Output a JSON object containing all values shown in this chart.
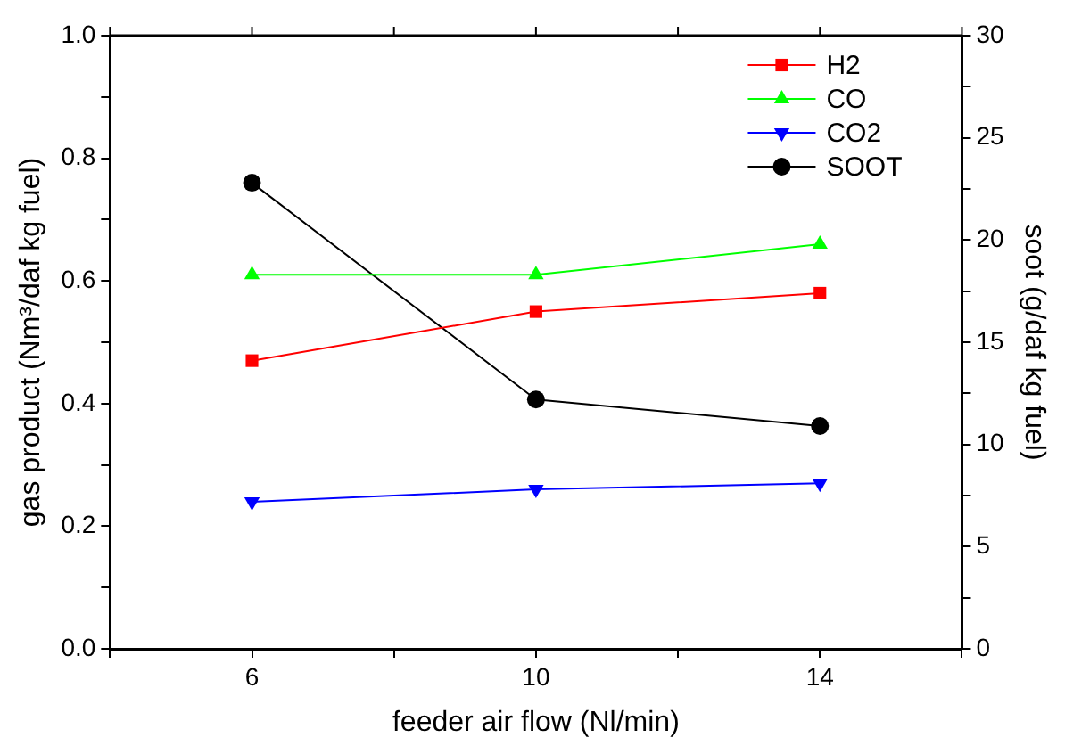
{
  "chart_data": {
    "type": "line",
    "xlabel": "feeder air flow (Nl/min)",
    "ylabel": "gas product (Nm³/daf kg fuel)",
    "y2label": "soot (g/daf kg fuel)",
    "x": [
      6,
      10,
      14
    ],
    "xlim": [
      4,
      16
    ],
    "xticks": [
      {
        "value": 4,
        "label": null
      },
      6,
      {
        "value": 8,
        "label": null
      },
      10,
      {
        "value": 12,
        "label": null
      },
      14,
      {
        "value": 16,
        "label": null
      }
    ],
    "ylim": [
      0,
      1
    ],
    "yticks": [
      "0.0",
      {
        "value": 0.1,
        "label": null
      },
      0.2,
      {
        "value": 0.3,
        "label": null
      },
      0.4,
      {
        "value": 0.5,
        "label": null
      },
      0.6,
      {
        "value": 0.7,
        "label": null
      },
      0.8,
      {
        "value": 0.9,
        "label": null
      },
      "1.0"
    ],
    "y2lim": [
      0,
      30
    ],
    "y2ticks": [
      0,
      {
        "value": 2.5,
        "label": null
      },
      5,
      {
        "value": 7.5,
        "label": null
      },
      10,
      {
        "value": 12.5,
        "label": null
      },
      15,
      {
        "value": 17.5,
        "label": null
      },
      20,
      {
        "value": 22.5,
        "label": null
      },
      25,
      {
        "value": 27.5,
        "label": null
      },
      30
    ],
    "series": [
      {
        "name": "H2",
        "color": "#ff0000",
        "marker": "square",
        "values": [
          0.47,
          0.55,
          0.58
        ]
      },
      {
        "name": "CO",
        "color": "#00ff00",
        "marker": "triangle",
        "values": [
          0.61,
          0.61,
          0.66
        ]
      },
      {
        "name": "CO2",
        "color": "#0000ff",
        "marker": "triangle-down",
        "values": [
          0.24,
          0.26,
          0.27
        ]
      },
      {
        "name": "SOOT",
        "color": "#000000",
        "marker": "circle",
        "axis": "y2",
        "values": [
          22.8,
          12.2,
          10.9
        ]
      }
    ],
    "grid": false,
    "legend": "top right",
    "line_style": "solid"
  }
}
